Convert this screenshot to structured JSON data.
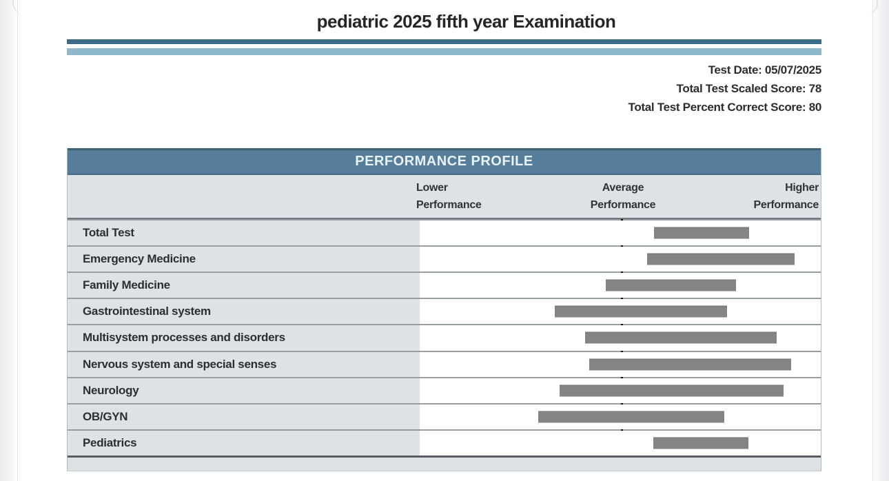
{
  "title": "pediatric 2025 fifth year Examination",
  "meta_lines": [
    "Test Date: 05/07/2025",
    "Total Test Scaled Score: 78",
    "Total Test Percent Correct Score: 80"
  ],
  "profile": {
    "header": "PERFORMANCE PROFILE",
    "columns": {
      "lower": [
        "Lower",
        "Performance"
      ],
      "average": [
        "Average",
        "Performance"
      ],
      "higher": [
        "Higher",
        "Performance"
      ]
    },
    "average_line_pct": 50.5,
    "rows": [
      {
        "label": "Total Test",
        "start_pct": 58.4,
        "end_pct": 82.2
      },
      {
        "label": "Emergency Medicine",
        "start_pct": 56.7,
        "end_pct": 93.5
      },
      {
        "label": "Family Medicine",
        "start_pct": 46.4,
        "end_pct": 78.9
      },
      {
        "label": "Gastrointestinal system",
        "start_pct": 33.6,
        "end_pct": 76.7
      },
      {
        "label": "Multisystem processes and disorders",
        "start_pct": 41.3,
        "end_pct": 89.0
      },
      {
        "label": "Nervous system and special senses",
        "start_pct": 42.3,
        "end_pct": 92.6
      },
      {
        "label": "Neurology",
        "start_pct": 34.8,
        "end_pct": 90.8
      },
      {
        "label": "OB/GYN",
        "start_pct": 29.5,
        "end_pct": 75.9
      },
      {
        "label": "Pediatrics",
        "start_pct": 58.2,
        "end_pct": 82.0
      }
    ]
  },
  "colors": {
    "rule_dark": "#3b6b87",
    "rule_light": "#8eb8cc",
    "profile_header_bg": "#567d99",
    "band_bg": "#dde2e6",
    "bar_gray": "#838486",
    "average_line": "#0e0e0e"
  },
  "chart_data": {
    "type": "bar",
    "subtype": "horizontal_range_bars",
    "title": "PERFORMANCE PROFILE",
    "axis_labels": [
      "Lower Performance",
      "Average Performance",
      "Higher Performance"
    ],
    "axis_range_pct": [
      0,
      100
    ],
    "average_reference_line_pct": 50.5,
    "categories": [
      "Total Test",
      "Emergency Medicine",
      "Family Medicine",
      "Gastrointestinal system",
      "Multisystem processes and disorders",
      "Nervous system and special senses",
      "Neurology",
      "OB/GYN",
      "Pediatrics"
    ],
    "series": [
      {
        "name": "score band (percent of axis width)",
        "ranges": [
          [
            58.4,
            82.2
          ],
          [
            56.7,
            93.5
          ],
          [
            46.4,
            78.9
          ],
          [
            33.6,
            76.7
          ],
          [
            41.3,
            89.0
          ],
          [
            42.3,
            92.6
          ],
          [
            34.8,
            90.8
          ],
          [
            29.5,
            75.9
          ],
          [
            58.2,
            82.0
          ]
        ]
      }
    ],
    "legend": "none",
    "grid": "row separators only"
  }
}
